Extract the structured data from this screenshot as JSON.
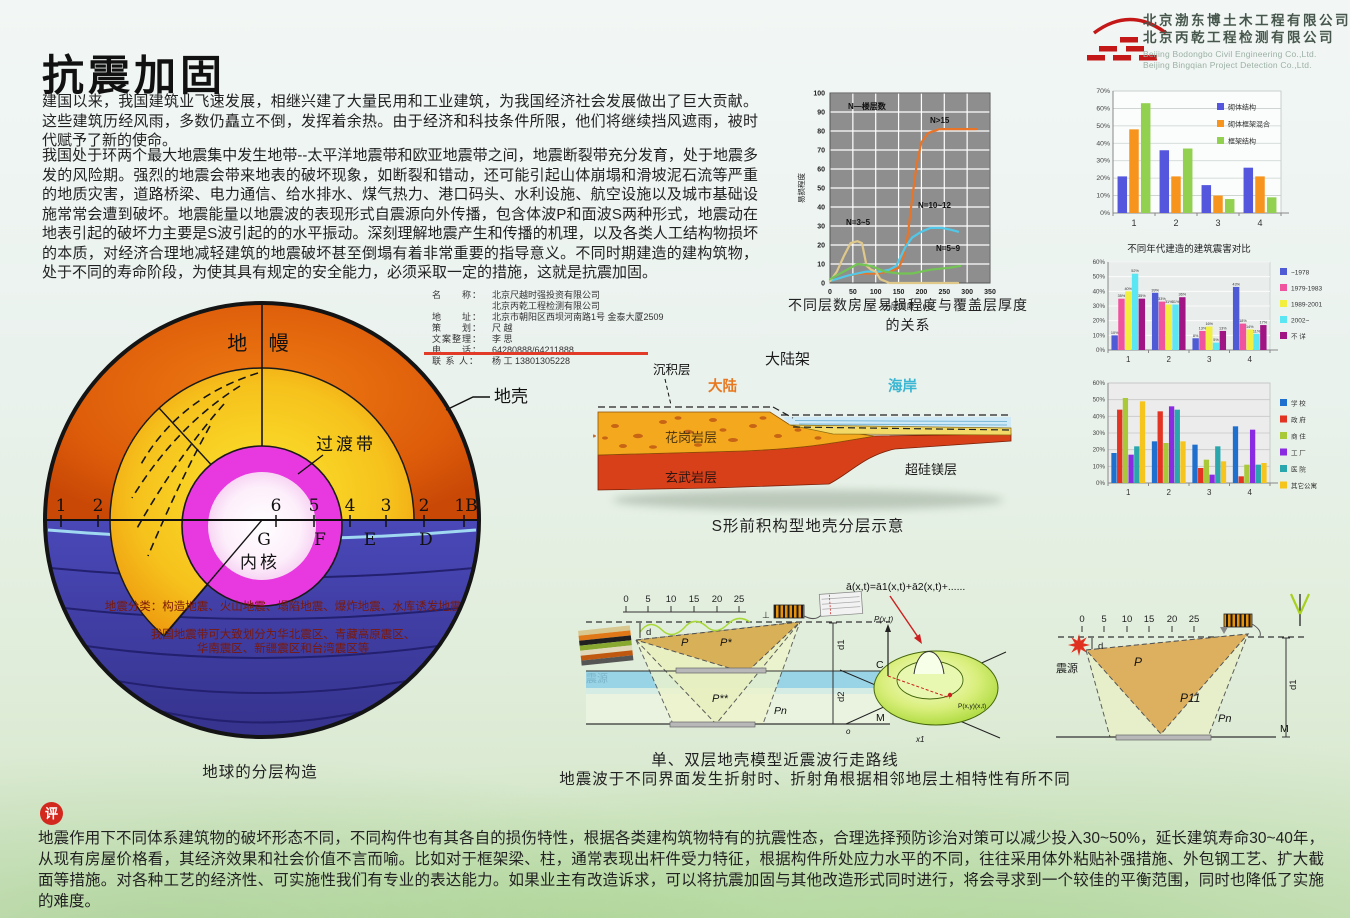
{
  "header": {
    "company_cn_1": "北京渤东博土木工程有限公司",
    "company_cn_2": "北京丙乾工程检测有限公司",
    "company_en_1": "Beijing Bodongbo Civil Engineering Co.,Ltd.",
    "company_en_2": "Beijing Bingqian Project Detection Co.,Ltd."
  },
  "title": "抗震加固",
  "intro": {
    "para1": "建国以来，我国建筑业飞速发展，相继兴建了大量民用和工业建筑，为我国经济社会发展做出了巨大贡献。这些建筑历经风雨，多数仍矗立不倒，发挥着余热。由于经济和科技条件所限，他们将继续挡风遮雨，被时代赋予了新的使命。",
    "para2": "我国处于环两个最大地震集中发生地带--太平洋地震带和欧亚地震带之间，地震断裂带充分发育，处于地震多发的风险期。强烈的地震会带来地表的破坏现象，如断裂和错动，还可能引起山体崩塌和滑坡泥石流等严重的地质灾害，道路桥梁、电力通信、给水排水、煤气热力、港口码头、水利设施、航空设施以及城市基础设施常常会遭到破坏。地震能量以地震波的表现形式自震源向外传播，包含体波P和面波S两种形式，地震动在地表引起的破坏力主要是S波引起的的水平振动。深刻理解地震产生和传播的机理，以及各类人工结构物损坏的本质，对经济合理地减轻建筑的地震破坏甚至倒塌有着非常重要的指导意义。不同时期建造的建构筑物，处于不同的寿命阶段，为使其具有规定的安全能力，必须采取一定的措施，这就是抗震加固。"
  },
  "contact": {
    "rows": [
      {
        "label": "名　　称：",
        "value": "北京尺越时强投资有限公司"
      },
      {
        "label": "",
        "value": "北京丙乾工程检测有限公司"
      },
      {
        "label": "地　　址：",
        "value": "北京市朝阳区西坝河南路1号 金泰大厦2509"
      },
      {
        "label": "策　　划：",
        "value": "尺 越"
      },
      {
        "label": "文案整理：",
        "value": "李 思"
      },
      {
        "label": "电　　话：",
        "value": "64280888/64211888"
      },
      {
        "label": "联 系 人：",
        "value": "杨 工 13801305228"
      }
    ]
  },
  "earth": {
    "labels": {
      "mantle": "地 幔",
      "crust": "地壳",
      "transition": "过渡带",
      "inner_core": "内核"
    },
    "eq_left": [
      "1",
      "2"
    ],
    "eq_right": [
      "6",
      "5",
      "4",
      "3",
      "2",
      "1B"
    ],
    "letters": [
      "G",
      "F",
      "E",
      "D"
    ],
    "classification": "地震分类：构造地震、火山地震、塌陷地震、爆炸地震、水库诱发地震",
    "zones1": "我国地震带可大致划分为华北震区、青藏高原震区、",
    "zones2": "华南震区、新疆震区和台湾震区等",
    "caption": "地球的分层构造"
  },
  "geo": {
    "sediment": "沉积层",
    "continent": "大陆",
    "shelf": "大陆架",
    "coast": "海岸",
    "granite": "花岗岩层",
    "basalt": "玄武岩层",
    "ultramafic": "超硅镁层",
    "caption": "S形前积构型地壳分层示意"
  },
  "ray": {
    "formula": "ā(x,t)=ā1(x,t)+ā2(x,t)+......",
    "left": {
      "source": "震源",
      "ruler": [
        "0",
        "5",
        "10",
        "15",
        "20",
        "25"
      ],
      "p": "P",
      "p_star": "P*",
      "p_dd": "P**",
      "pn": "Pn",
      "d": "d",
      "d1": "d1",
      "d2": "d2",
      "c": "C",
      "m": "M"
    },
    "surf": {
      "axis": "P(x,t)",
      "point": "P(x,y)(x,t)",
      "origin": "o",
      "x1": "x1"
    },
    "right": {
      "source": "震源",
      "ruler": [
        "0",
        "5",
        "10",
        "15",
        "20",
        "25"
      ],
      "p": "P",
      "p11": "P11",
      "pn": "Pn",
      "d": "d",
      "d1": "d1",
      "m": "M"
    },
    "caption1": "单、双层地壳模型近震波行走路线",
    "caption2": "地震波于不同界面发生折射时、折射角根据相邻地层土相特性有所不同"
  },
  "footer": {
    "badge": "评",
    "text": "地震作用下不同体系建筑物的破坏形态不同，不同构件也有其各自的损伤特性，根据各类建构筑物特有的抗震性态，合理选择预防诊治对策可以减少投入30~50%，延长建筑寿命30~40年，从现有房屋价格看，其经济效果和社会价值不言而喻。比如对于框架梁、柱，通常表现出杆件受力特征，根据构件所处应力水平的不同，往往采用体外粘贴补强措施、外包钢工艺、扩大截面等措施。对各种工艺的经济性、可实施性我们有专业的表达能力。如果业主有改造诉求，可以将抗震加固与其他改造形式同时进行，将会寻求到一个较佳的平衡范围，同时也降低了实施的难度。"
  },
  "chart_data": [
    {
      "type": "line",
      "title": "不同层数房屋易损程度与覆盖层厚度的关系",
      "xlabel": "土层厚度（m）",
      "ylabel": "易损程度",
      "xlim": [
        0,
        350
      ],
      "ylim": [
        0,
        100
      ],
      "xstep": 50,
      "ystep": 10,
      "annotation": "N—楼层数",
      "legend_position": "labels-on-curves",
      "series": [
        {
          "name": "N>15",
          "color": "#e87428",
          "x": [
            0,
            40,
            70,
            100,
            130,
            150,
            160,
            170,
            180,
            190,
            200,
            215,
            240,
            270,
            300,
            320
          ],
          "y": [
            1,
            4,
            5,
            5,
            6,
            8,
            13,
            25,
            45,
            63,
            74,
            79,
            81,
            81,
            81,
            81
          ]
        },
        {
          "name": "N=10~12",
          "color": "#52c8e8",
          "x": [
            0,
            40,
            80,
            110,
            130,
            145,
            155,
            165,
            180,
            200,
            220,
            245,
            265,
            280
          ],
          "y": [
            1,
            4,
            6,
            6,
            7,
            9,
            14,
            19,
            24,
            27,
            29,
            29,
            28,
            27
          ]
        },
        {
          "name": "N=3~5",
          "color": "#e0c88a",
          "x": [
            0,
            15,
            30,
            45,
            60,
            70,
            80,
            90,
            100,
            110,
            130,
            200,
            280
          ],
          "y": [
            1,
            6,
            14,
            21,
            22,
            21,
            9,
            7,
            6,
            2,
            0,
            0,
            0
          ]
        },
        {
          "name": "N=5~9",
          "color": "#74c455",
          "x": [
            0,
            30,
            60,
            90,
            120,
            150,
            180,
            220,
            260,
            285
          ],
          "y": [
            2,
            6,
            10,
            9,
            6,
            5,
            5,
            7,
            8,
            9
          ]
        }
      ]
    },
    {
      "type": "bar",
      "categories": [
        "1",
        "2",
        "3",
        "4"
      ],
      "ylim": [
        0,
        70
      ],
      "legend_position": "inside-right",
      "series": [
        {
          "name": "砌体结构",
          "color": "#5456dd",
          "values": [
            21,
            36,
            16,
            26
          ]
        },
        {
          "name": "砌体框架混合",
          "color": "#f7941d",
          "values": [
            48,
            21,
            10,
            21
          ]
        },
        {
          "name": "框架结构",
          "color": "#92d04f",
          "values": [
            63,
            37,
            8,
            9
          ]
        }
      ]
    },
    {
      "type": "bar",
      "title": "不同年代建造的建筑震害对比",
      "categories": [
        "1",
        "2",
        "3",
        "4"
      ],
      "ylim": [
        0,
        60
      ],
      "legend_position": "right",
      "data_labels": true,
      "series": [
        {
          "name": "~1978",
          "color": "#4f5bd5",
          "values": [
            10,
            39,
            8,
            43
          ]
        },
        {
          "name": "1979-1983",
          "color": "#f0549e",
          "values": [
            35,
            33,
            13,
            18
          ]
        },
        {
          "name": "1989-2001",
          "color": "#f2ef3e",
          "values": [
            40,
            31,
            16,
            14
          ]
        },
        {
          "name": "2002~",
          "color": "#5ae6f2",
          "values": [
            52,
            31,
            5,
            11
          ]
        },
        {
          "name": "不 详",
          "color": "#a11483",
          "values": [
            35,
            36,
            13,
            17
          ]
        }
      ]
    },
    {
      "type": "bar",
      "categories": [
        "1",
        "2",
        "3",
        "4"
      ],
      "ylim": [
        0,
        60
      ],
      "legend_position": "right",
      "series": [
        {
          "name": "学 校",
          "color": "#1f6fce",
          "values": [
            18,
            25,
            23,
            34
          ]
        },
        {
          "name": "政 府",
          "color": "#e23323",
          "values": [
            44,
            43,
            9,
            4
          ]
        },
        {
          "name": "商 住",
          "color": "#a9c938",
          "values": [
            51,
            24,
            14,
            11
          ]
        },
        {
          "name": "工 厂",
          "color": "#8a2be2",
          "values": [
            17,
            46,
            5,
            32
          ]
        },
        {
          "name": "医 院",
          "color": "#2aa7ad",
          "values": [
            22,
            44,
            22,
            11
          ]
        },
        {
          "name": "其它公寓",
          "color": "#f5c51d",
          "values": [
            49,
            25,
            13,
            12
          ]
        }
      ]
    }
  ]
}
